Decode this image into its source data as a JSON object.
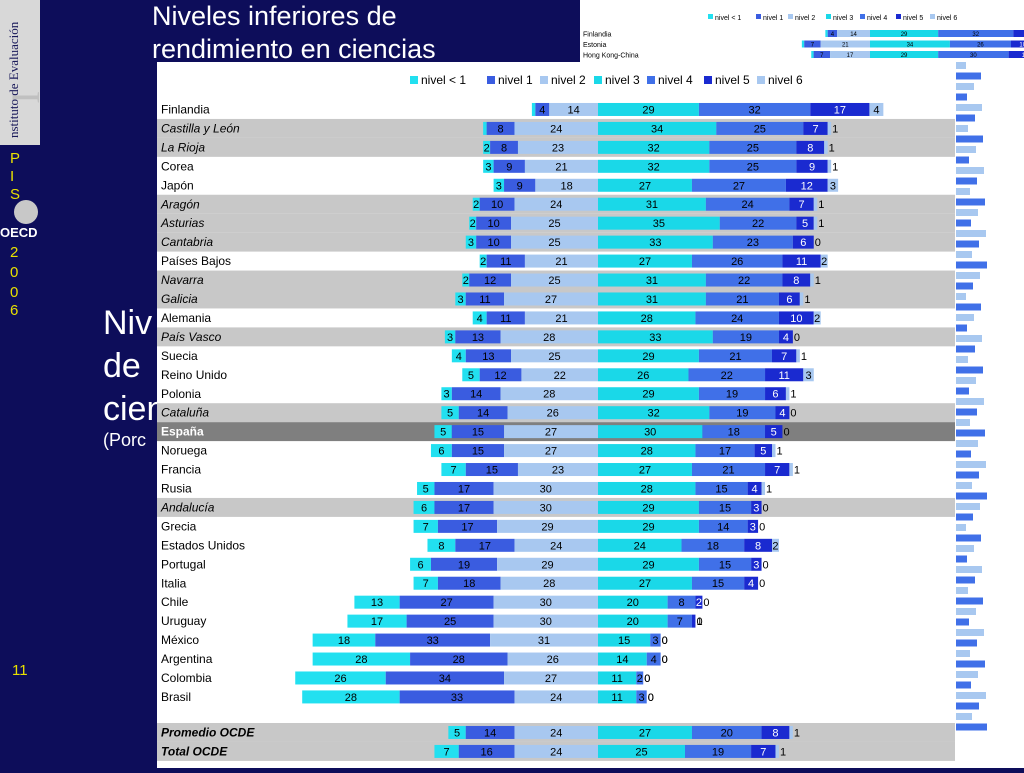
{
  "slide": {
    "title_line1": "Niveles inferiores de",
    "title_line2": "rendimiento en ciencias",
    "bg_title_1": "Niv",
    "bg_title_2": "de",
    "bg_title_3": "cien",
    "bg_sub": "(Porc",
    "page_number": "11",
    "sidebar_letters": [
      "P",
      "I",
      "S",
      "2",
      "0",
      "0",
      "6"
    ],
    "oecd_label": "OECD",
    "logo_letter": "I",
    "logo_text": "nstituto de Evaluación"
  },
  "colors": {
    "nivel_lt1": "#22e0f0",
    "nivel_1": "#3a5ce0",
    "nivel_2": "#a8c8f0",
    "nivel_3": "#1ad8e8",
    "nivel_4": "#4070e8",
    "nivel_5": "#1a2ad0",
    "nivel_6": "#a8c8f0",
    "row_gray": "#c8c8c8",
    "row_spain": "#7f7f7f"
  },
  "chart_data": {
    "type": "bar",
    "stacked": true,
    "orientation": "horizontal",
    "diverging_at": "nivel 2 / nivel 3",
    "legend": [
      "nivel < 1",
      "nivel 1",
      "nivel 2",
      "nivel 3",
      "nivel 4",
      "nivel 5",
      "nivel 6"
    ],
    "legend_position": "top",
    "rows": [
      {
        "label": "Finlandia",
        "style": "normal",
        "values": [
          1,
          4,
          14,
          29,
          32,
          17,
          4
        ]
      },
      {
        "label": "Castilla y León",
        "style": "region",
        "values": [
          1,
          8,
          24,
          34,
          25,
          7,
          1
        ]
      },
      {
        "label": "La Rioja",
        "style": "region",
        "values": [
          2,
          8,
          23,
          32,
          25,
          8,
          1
        ]
      },
      {
        "label": "Corea",
        "style": "normal",
        "values": [
          3,
          9,
          21,
          32,
          25,
          9,
          1
        ]
      },
      {
        "label": "Japón",
        "style": "normal",
        "values": [
          3,
          9,
          18,
          27,
          27,
          12,
          3
        ]
      },
      {
        "label": "Aragón",
        "style": "region",
        "values": [
          2,
          10,
          24,
          31,
          24,
          7,
          1
        ]
      },
      {
        "label": "Asturias",
        "style": "region",
        "values": [
          2,
          10,
          25,
          35,
          22,
          5,
          1
        ]
      },
      {
        "label": "Cantabria",
        "style": "region",
        "values": [
          3,
          10,
          25,
          33,
          23,
          6,
          0
        ]
      },
      {
        "label": "Países Bajos",
        "style": "normal",
        "values": [
          2,
          11,
          21,
          27,
          26,
          11,
          2
        ]
      },
      {
        "label": "Navarra",
        "style": "region",
        "values": [
          2,
          12,
          25,
          31,
          22,
          8,
          1
        ]
      },
      {
        "label": "Galicia",
        "style": "region",
        "values": [
          3,
          11,
          27,
          31,
          21,
          6,
          1
        ]
      },
      {
        "label": "Alemania",
        "style": "normal",
        "values": [
          4,
          11,
          21,
          28,
          24,
          10,
          2
        ]
      },
      {
        "label": "País Vasco",
        "style": "region",
        "values": [
          3,
          13,
          28,
          33,
          19,
          4,
          0
        ]
      },
      {
        "label": "Suecia",
        "style": "normal",
        "values": [
          4,
          13,
          25,
          29,
          21,
          7,
          1
        ]
      },
      {
        "label": "Reino Unido",
        "style": "normal",
        "values": [
          5,
          12,
          22,
          26,
          22,
          11,
          3
        ]
      },
      {
        "label": "Polonia",
        "style": "normal",
        "values": [
          3,
          14,
          28,
          29,
          19,
          6,
          1
        ]
      },
      {
        "label": "Cataluña",
        "style": "region",
        "values": [
          5,
          14,
          26,
          32,
          19,
          4,
          0
        ]
      },
      {
        "label": "España",
        "style": "spain",
        "values": [
          5,
          15,
          27,
          30,
          18,
          5,
          0
        ]
      },
      {
        "label": "Noruega",
        "style": "normal",
        "values": [
          6,
          15,
          27,
          28,
          17,
          5,
          1
        ]
      },
      {
        "label": "Francia",
        "style": "normal",
        "values": [
          7,
          15,
          23,
          27,
          21,
          7,
          1
        ]
      },
      {
        "label": "Rusia",
        "style": "normal",
        "values": [
          5,
          17,
          30,
          28,
          15,
          4,
          1
        ]
      },
      {
        "label": "Andalucía",
        "style": "region",
        "values": [
          6,
          17,
          30,
          29,
          15,
          3,
          0
        ]
      },
      {
        "label": "Grecia",
        "style": "normal",
        "values": [
          7,
          17,
          29,
          29,
          14,
          3,
          0
        ]
      },
      {
        "label": "Estados Unidos",
        "style": "normal",
        "values": [
          8,
          17,
          24,
          24,
          18,
          8,
          2
        ]
      },
      {
        "label": "Portugal",
        "style": "normal",
        "values": [
          6,
          19,
          29,
          29,
          15,
          3,
          0
        ]
      },
      {
        "label": "Italia",
        "style": "normal",
        "values": [
          7,
          18,
          28,
          27,
          15,
          4,
          0
        ]
      },
      {
        "label": "Chile",
        "style": "normal",
        "values": [
          13,
          27,
          30,
          20,
          8,
          2,
          0
        ]
      },
      {
        "label": "Uruguay",
        "style": "normal",
        "values": [
          17,
          25,
          30,
          20,
          7,
          1,
          0
        ]
      },
      {
        "label": "México",
        "style": "normal",
        "values": [
          18,
          33,
          31,
          15,
          3,
          0,
          0
        ]
      },
      {
        "label": "Argentina",
        "style": "normal",
        "values": [
          28,
          28,
          26,
          14,
          4,
          0,
          0
        ]
      },
      {
        "label": "Colombia",
        "style": "normal",
        "values": [
          26,
          34,
          27,
          11,
          2,
          0,
          0
        ]
      },
      {
        "label": "Brasil",
        "style": "normal",
        "values": [
          28,
          33,
          24,
          11,
          3,
          0,
          0
        ]
      }
    ],
    "summary_rows": [
      {
        "label": "Promedio OCDE",
        "style": "summary",
        "values": [
          5,
          14,
          24,
          27,
          20,
          8,
          1
        ]
      },
      {
        "label": "Total OCDE",
        "style": "summary",
        "values": [
          7,
          16,
          24,
          25,
          19,
          7,
          1
        ]
      }
    ]
  },
  "rear_chart": {
    "legend": [
      "nivel < 1",
      "nivel 1",
      "nivel 2",
      "nivel 3",
      "nivel 4",
      "nivel 5",
      "nivel 6"
    ],
    "rows": [
      {
        "label": "Finlandia",
        "values": [
          1,
          4,
          14,
          29,
          32,
          17,
          4
        ]
      },
      {
        "label": "Estonia",
        "values": [
          1,
          7,
          21,
          34,
          26,
          10,
          1
        ]
      },
      {
        "label": "Hong Kong-China",
        "values": [
          1,
          7,
          17,
          29,
          30,
          14,
          2
        ]
      }
    ]
  }
}
